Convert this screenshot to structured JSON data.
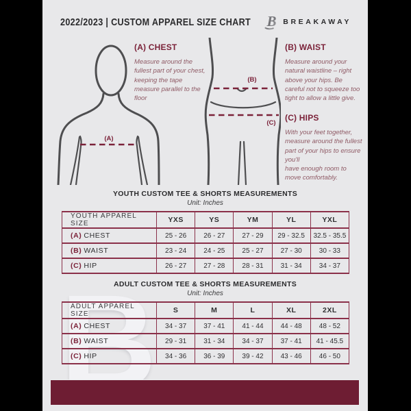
{
  "header": {
    "title": "2022/2023  |  CUSTOM APPAREL SIZE CHART",
    "brand": "BREAKAWAY"
  },
  "measure_guide": {
    "chest": {
      "heading": "(A) CHEST",
      "body": "Measure around the fullest part of your chest, keeping the tape measure parallel to the floor",
      "marker": "(A)"
    },
    "waist": {
      "heading": "(B) WAIST",
      "body": "Measure around your natural waistline – right above your hips. Be careful not to squeeze too tight to allow a little give.",
      "marker": "(B)"
    },
    "hips": {
      "heading": "(C) HIPS",
      "body": "With your feet together, measure around the fullest part of your hips to ensure you'll\nhave enough room to move comfortably.",
      "marker": "(C)"
    }
  },
  "tables": [
    {
      "title": "YOUTH CUSTOM TEE & SHORTS MEASUREMENTS",
      "unit": "Unit: Inches",
      "header": [
        "YOUTH APPAREL SIZE",
        "YXS",
        "YS",
        "YM",
        "YL",
        "YXL"
      ],
      "rows": [
        {
          "key": "(A)",
          "label": "CHEST",
          "values": [
            "25 - 26",
            "26 - 27",
            "27 - 29",
            "29 - 32.5",
            "32.5 - 35.5"
          ]
        },
        {
          "key": "(B)",
          "label": "WAIST",
          "values": [
            "23 - 24",
            "24 - 25",
            "25 - 27",
            "27 - 30",
            "30 - 33"
          ]
        },
        {
          "key": "(C)",
          "label": "HIP",
          "values": [
            "26 - 27",
            "27 - 28",
            "28 - 31",
            "31 - 34",
            "34 - 37"
          ]
        }
      ]
    },
    {
      "title": "ADULT CUSTOM TEE & SHORTS MEASUREMENTS",
      "unit": "Unit: Inches",
      "header": [
        "ADULT APPAREL SIZE",
        "S",
        "M",
        "L",
        "XL",
        "2XL"
      ],
      "rows": [
        {
          "key": "(A)",
          "label": "CHEST",
          "values": [
            "34 - 37",
            "37 - 41",
            "41 - 44",
            "44 - 48",
            "48 - 52"
          ]
        },
        {
          "key": "(B)",
          "label": "WAIST",
          "values": [
            "29 - 31",
            "31 - 34",
            "34 - 37",
            "37 - 41",
            "41 - 45.5"
          ]
        },
        {
          "key": "(C)",
          "label": "HIP",
          "values": [
            "34 - 36",
            "36 - 39",
            "39 - 42",
            "43 - 46",
            "46 - 50"
          ]
        }
      ]
    }
  ],
  "watermark_letter": "B",
  "colors": {
    "maroon": "#7B2239",
    "table_border": "#8A3049",
    "footer_bar": "#6E1D33",
    "page_bg": "#E8E8EA",
    "ink": "#2B2B2D",
    "muted_maroon_text": "#8F5A65",
    "figure_outline": "#4E4E50"
  }
}
